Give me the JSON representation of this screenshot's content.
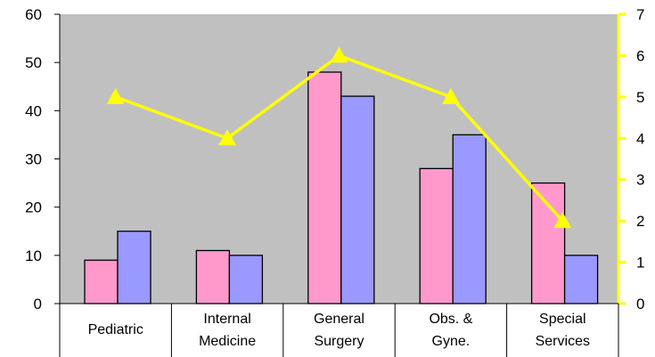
{
  "chart_data": {
    "type": "bar",
    "categories": [
      [
        "Pediatric"
      ],
      [
        "Internal",
        "Medicine"
      ],
      [
        "General",
        "Surgery"
      ],
      [
        "Obs. &",
        "Gyne."
      ],
      [
        "Special",
        "Services"
      ]
    ],
    "series": [
      {
        "type": "bar",
        "axis": "left",
        "values": [
          9,
          11,
          48,
          28,
          25
        ],
        "color": "#ff99cc"
      },
      {
        "type": "bar",
        "axis": "left",
        "values": [
          15,
          10,
          43,
          35,
          10
        ],
        "color": "#9999ff"
      },
      {
        "type": "line",
        "axis": "right",
        "values": [
          5,
          4,
          6,
          5,
          2
        ],
        "color": "#ffff00",
        "marker": "triangle"
      }
    ],
    "y_left": {
      "min": 0,
      "max": 60,
      "ticks": [
        0,
        10,
        20,
        30,
        40,
        50,
        60
      ]
    },
    "y_right": {
      "min": 0,
      "max": 7,
      "ticks": [
        0,
        1,
        2,
        3,
        4,
        5,
        6,
        7
      ],
      "color": "#ffff00"
    },
    "plot_background": "#c0c0c0",
    "grid": false,
    "legend": "none"
  }
}
